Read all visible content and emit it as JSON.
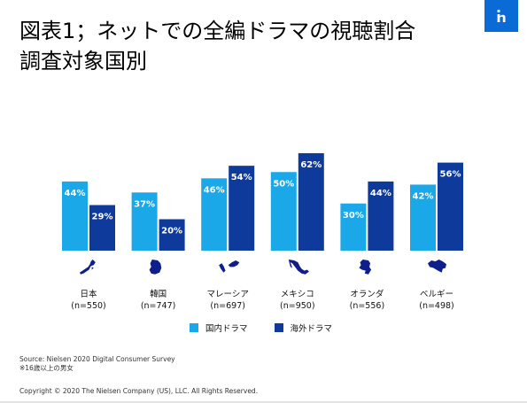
{
  "title": "図表1；ネットでの全編ドラマの視聴割合\n調査対象国別",
  "logo": {
    "text": "n",
    "color": "#0a6bd6"
  },
  "colors": {
    "domestic": "#1aa8e8",
    "foreign": "#0e3a9c"
  },
  "chart_data": {
    "type": "bar",
    "categories": [
      "日本",
      "韓国",
      "マレーシア",
      "メキシコ",
      "オランダ",
      "ベルギー"
    ],
    "sample_sizes": [
      "(n=550)",
      "(n=747)",
      "(n=697)",
      "(n=950)",
      "(n=556)",
      "(n=498)"
    ],
    "icons": [
      "japan-map-icon",
      "korea-map-icon",
      "malaysia-map-icon",
      "mexico-map-icon",
      "netherlands-map-icon",
      "belgium-map-icon"
    ],
    "series": [
      {
        "name": "国内ドラマ",
        "values": [
          44,
          37,
          46,
          50,
          30,
          42
        ]
      },
      {
        "name": "海外ドラマ",
        "values": [
          29,
          20,
          54,
          62,
          44,
          56
        ]
      }
    ],
    "value_suffix": "%",
    "ylim": [
      0,
      70
    ],
    "grid": false,
    "legend": "bottom"
  },
  "source": "Source: Nielsen 2020 Digital Consumer Survey",
  "note": "※16歳以上の男女",
  "copyright": "Copyright © 2020 The Nielsen Company (US), LLC. All Rights Reserved."
}
